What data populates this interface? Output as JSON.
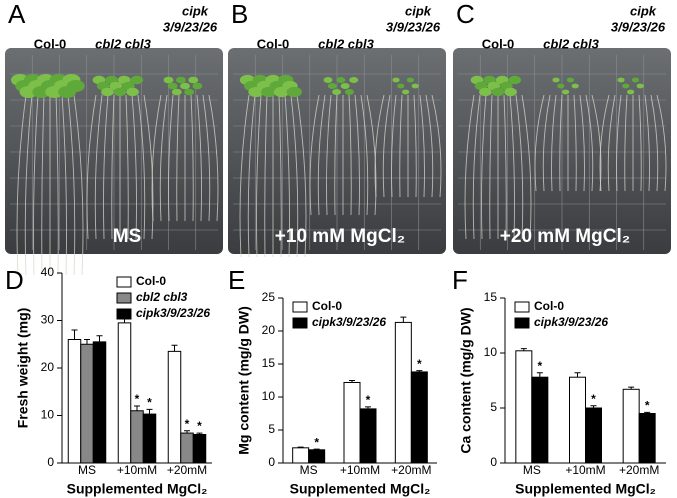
{
  "photos": [
    {
      "label": "A",
      "genotypes": [
        "Col-0",
        "cbl2 cbl3",
        "cipk",
        "3/9/23/26"
      ],
      "condition": "MS"
    },
    {
      "label": "B",
      "genotypes": [
        "Col-0",
        "cbl2 cbl3",
        "cipk",
        "3/9/23/26"
      ],
      "condition": "+10 mM MgCl₂"
    },
    {
      "label": "C",
      "genotypes": [
        "Col-0",
        "cbl2 cbl3",
        "cipk",
        "3/9/23/26"
      ],
      "condition": "+20 mM MgCl₂"
    }
  ],
  "chart_data": [
    {
      "type": "bar",
      "panel": "D",
      "ylabel": "Fresh weight (mg)",
      "xlabel": "Supplemented MgCl₂",
      "categories": [
        "MS",
        "+10mM",
        "+20mM"
      ],
      "ylim": [
        0,
        40
      ],
      "yticks": [
        0,
        10,
        20,
        30,
        40
      ],
      "legend": "upper right",
      "series": [
        {
          "name": "Col-0",
          "color": "#ffffff",
          "values": [
            26,
            29.5,
            23.5
          ],
          "errors": [
            2,
            1.8,
            1.3
          ],
          "marks": [
            null,
            null,
            null
          ]
        },
        {
          "name": "cbl2 cbl3",
          "color": "#888888",
          "values": [
            25,
            11,
            6.3
          ],
          "errors": [
            1,
            1,
            0.5
          ],
          "marks": [
            null,
            "*",
            "*"
          ]
        },
        {
          "name": "cipk3/9/23/26",
          "color": "#000000",
          "values": [
            25.5,
            10.3,
            6
          ],
          "errors": [
            1.3,
            1,
            0.3
          ],
          "marks": [
            null,
            "*",
            "*"
          ]
        }
      ]
    },
    {
      "type": "bar",
      "panel": "E",
      "ylabel": "Mg content (mg/g DW)",
      "xlabel": "Supplemented MgCl₂",
      "categories": [
        "MS",
        "+10mM",
        "+20mM"
      ],
      "ylim": [
        0,
        25
      ],
      "yticks": [
        0,
        5,
        10,
        15,
        20,
        25
      ],
      "legend": "upper left",
      "series": [
        {
          "name": "Col-0",
          "color": "#ffffff",
          "values": [
            2.3,
            12.2,
            21.3
          ],
          "errors": [
            0.1,
            0.3,
            0.8
          ],
          "marks": [
            null,
            null,
            null
          ]
        },
        {
          "name": "cipk3/9/23/26",
          "color": "#000000",
          "values": [
            2.0,
            8.2,
            13.8
          ],
          "errors": [
            0.1,
            0.3,
            0.2
          ],
          "marks": [
            "*",
            "*",
            "*"
          ]
        }
      ]
    },
    {
      "type": "bar",
      "panel": "F",
      "ylabel": "Ca content (mg/g DW)",
      "xlabel": "Supplemented MgCl₂",
      "categories": [
        "MS",
        "+10mM",
        "+20mM"
      ],
      "ylim": [
        0,
        15
      ],
      "yticks": [
        0,
        5,
        10,
        15
      ],
      "legend": "upper left",
      "series": [
        {
          "name": "Col-0",
          "color": "#ffffff",
          "values": [
            10.2,
            7.8,
            6.7
          ],
          "errors": [
            0.2,
            0.4,
            0.2
          ],
          "marks": [
            null,
            null,
            null
          ]
        },
        {
          "name": "cipk3/9/23/26",
          "color": "#000000",
          "values": [
            7.8,
            5.0,
            4.5
          ],
          "errors": [
            0.4,
            0.2,
            0.1
          ],
          "marks": [
            "*",
            "*",
            "*"
          ]
        }
      ]
    }
  ]
}
